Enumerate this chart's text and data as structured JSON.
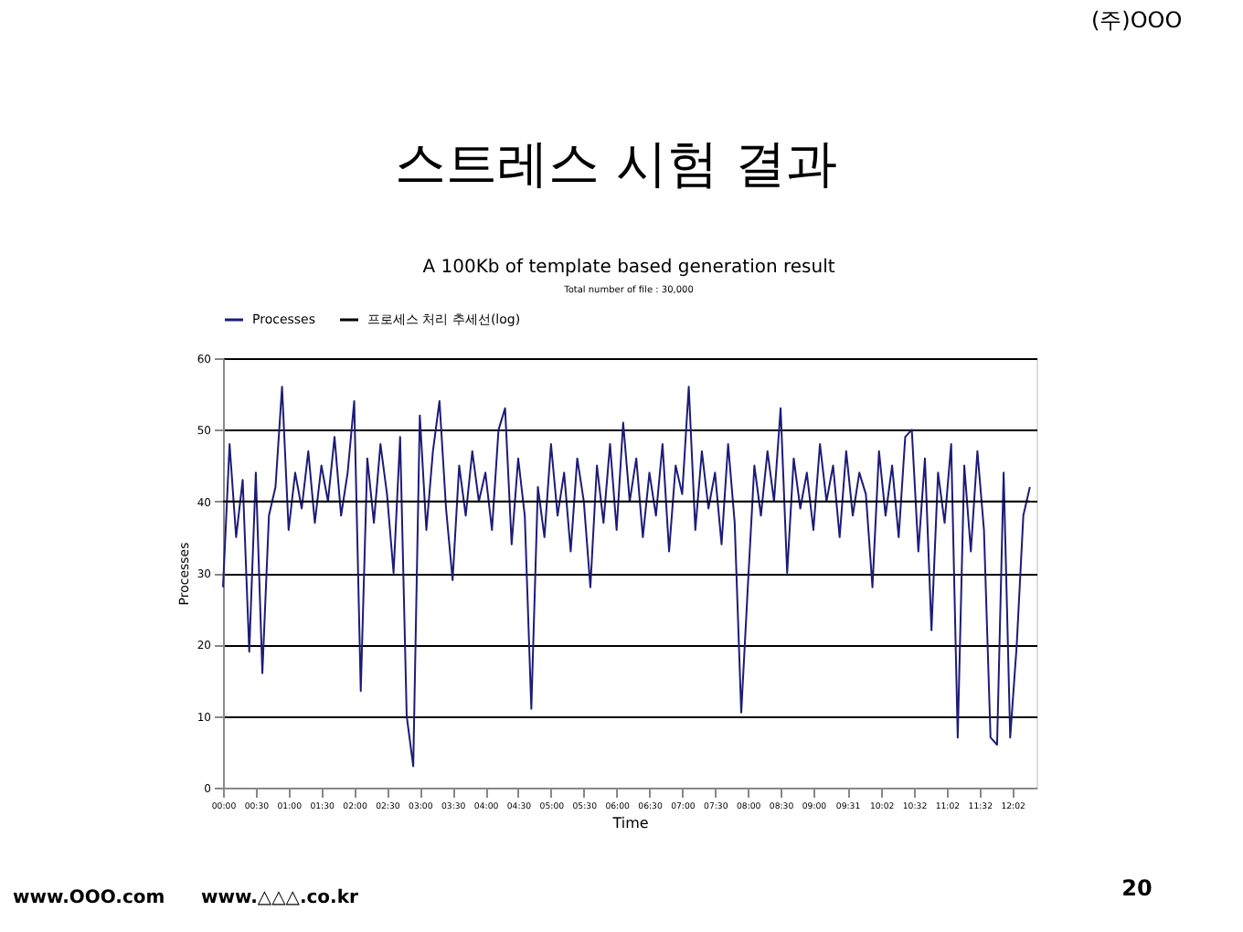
{
  "chart_data": {
    "type": "line",
    "title": "A 100Kb of template based generation result",
    "subtitle": "Total number of file : 30,000",
    "xlabel": "Time",
    "ylabel": "Processes",
    "annotations": [
      "(주)OOO",
      "스트레스 시험 결과",
      "www.OOO.com",
      "www.△△△.co.kr",
      "20"
    ],
    "xlim": [
      0,
      12.4
    ],
    "ylim": [
      0,
      60
    ],
    "xticks": [
      {
        "value": 0,
        "label": "00:00"
      },
      {
        "value": 0.5,
        "label": "00:30"
      },
      {
        "value": 1,
        "label": "01:00"
      },
      {
        "value": 1.5,
        "label": "01:30"
      },
      {
        "value": 2,
        "label": "02:00"
      },
      {
        "value": 2.5,
        "label": "02:30"
      },
      {
        "value": 3,
        "label": "03:00"
      },
      {
        "value": 3.5,
        "label": "03:30"
      },
      {
        "value": 4,
        "label": "04:00"
      },
      {
        "value": 4.5,
        "label": "04:30"
      },
      {
        "value": 5,
        "label": "05:00"
      },
      {
        "value": 5.5,
        "label": "05:30"
      },
      {
        "value": 6,
        "label": "06:00"
      },
      {
        "value": 6.5,
        "label": "06:30"
      },
      {
        "value": 7,
        "label": "07:00"
      },
      {
        "value": 7.5,
        "label": "07:30"
      },
      {
        "value": 8,
        "label": "08:00"
      },
      {
        "value": 8.5,
        "label": "08:30"
      },
      {
        "value": 9,
        "label": "09:00"
      },
      {
        "value": 9.516667,
        "label": "09:31"
      },
      {
        "value": 10.033333,
        "label": "10:02"
      },
      {
        "value": 10.533333,
        "label": "10:32"
      },
      {
        "value": 11.033333,
        "label": "11:02"
      },
      {
        "value": 11.533333,
        "label": "11:32"
      },
      {
        "value": 12.033333,
        "label": "12:02"
      }
    ],
    "yticks": [
      0,
      10,
      20,
      30,
      40,
      50,
      60
    ],
    "grid": "y",
    "legend": "top",
    "marker": "none",
    "line_style": "solid",
    "series": [
      {
        "name": "Processes",
        "color": "#1c1c78",
        "x": [
          0,
          0.1,
          0.2,
          0.3,
          0.4,
          0.5,
          0.6,
          0.7,
          0.8,
          0.9,
          1.0,
          1.1,
          1.2,
          1.3,
          1.4,
          1.5,
          1.6,
          1.7,
          1.8,
          1.9,
          2.0,
          2.1,
          2.2,
          2.3,
          2.4,
          2.5,
          2.6,
          2.7,
          2.8,
          2.9,
          3.0,
          3.1,
          3.2,
          3.3,
          3.4,
          3.5,
          3.6,
          3.7,
          3.8,
          3.9,
          4.0,
          4.1,
          4.2,
          4.3,
          4.4,
          4.5,
          4.6,
          4.7,
          4.8,
          4.9,
          5.0,
          5.1,
          5.2,
          5.3,
          5.4,
          5.5,
          5.6,
          5.7,
          5.8,
          5.9,
          6.0,
          6.1,
          6.2,
          6.3,
          6.4,
          6.5,
          6.6,
          6.7,
          6.8,
          6.9,
          7.0,
          7.1,
          7.2,
          7.3,
          7.4,
          7.5,
          7.6,
          7.7,
          7.8,
          7.9,
          8.0,
          8.1,
          8.2,
          8.3,
          8.4,
          8.5,
          8.6,
          8.7,
          8.8,
          8.9,
          9.0,
          9.1,
          9.2,
          9.3,
          9.4,
          9.5,
          9.6,
          9.7,
          9.8,
          9.9,
          10.0,
          10.1,
          10.2,
          10.3,
          10.4,
          10.5,
          10.6,
          10.7,
          10.8,
          10.9,
          11.0,
          11.1,
          11.2,
          11.3,
          11.4,
          11.5,
          11.6,
          11.7,
          11.8,
          11.9,
          12.0,
          12.1,
          12.2,
          12.3
        ],
        "values": [
          28,
          48,
          35,
          43,
          19,
          44,
          16,
          38,
          42,
          56,
          36,
          44,
          39,
          47,
          37,
          45,
          40,
          49,
          38,
          44,
          54,
          13.5,
          46,
          37,
          48,
          41,
          30,
          49,
          10,
          3,
          52,
          36,
          47,
          54,
          39,
          29,
          45,
          38,
          47,
          40,
          44,
          36,
          50,
          53,
          34,
          46,
          38,
          11,
          42,
          35,
          48,
          38,
          44,
          33,
          46,
          40,
          28,
          45,
          37,
          48,
          36,
          51,
          40,
          46,
          35,
          44,
          38,
          48,
          33,
          45,
          41,
          56,
          36,
          47,
          39,
          44,
          34,
          48,
          37,
          10.5,
          28,
          45,
          38,
          47,
          40,
          53,
          30,
          46,
          39,
          44,
          36,
          48,
          40,
          45,
          35,
          47,
          38,
          44,
          41,
          28,
          47,
          38,
          45,
          35,
          49,
          50,
          33,
          46,
          22,
          44,
          37,
          48,
          7,
          45,
          33,
          47,
          36,
          7,
          6,
          44,
          7,
          20,
          38,
          42
        ]
      },
      {
        "name": "프로세스 처리 추세선(log)",
        "color": "#000000",
        "x": [
          0,
          12.3
        ],
        "values": [
          40,
          40
        ]
      }
    ]
  }
}
